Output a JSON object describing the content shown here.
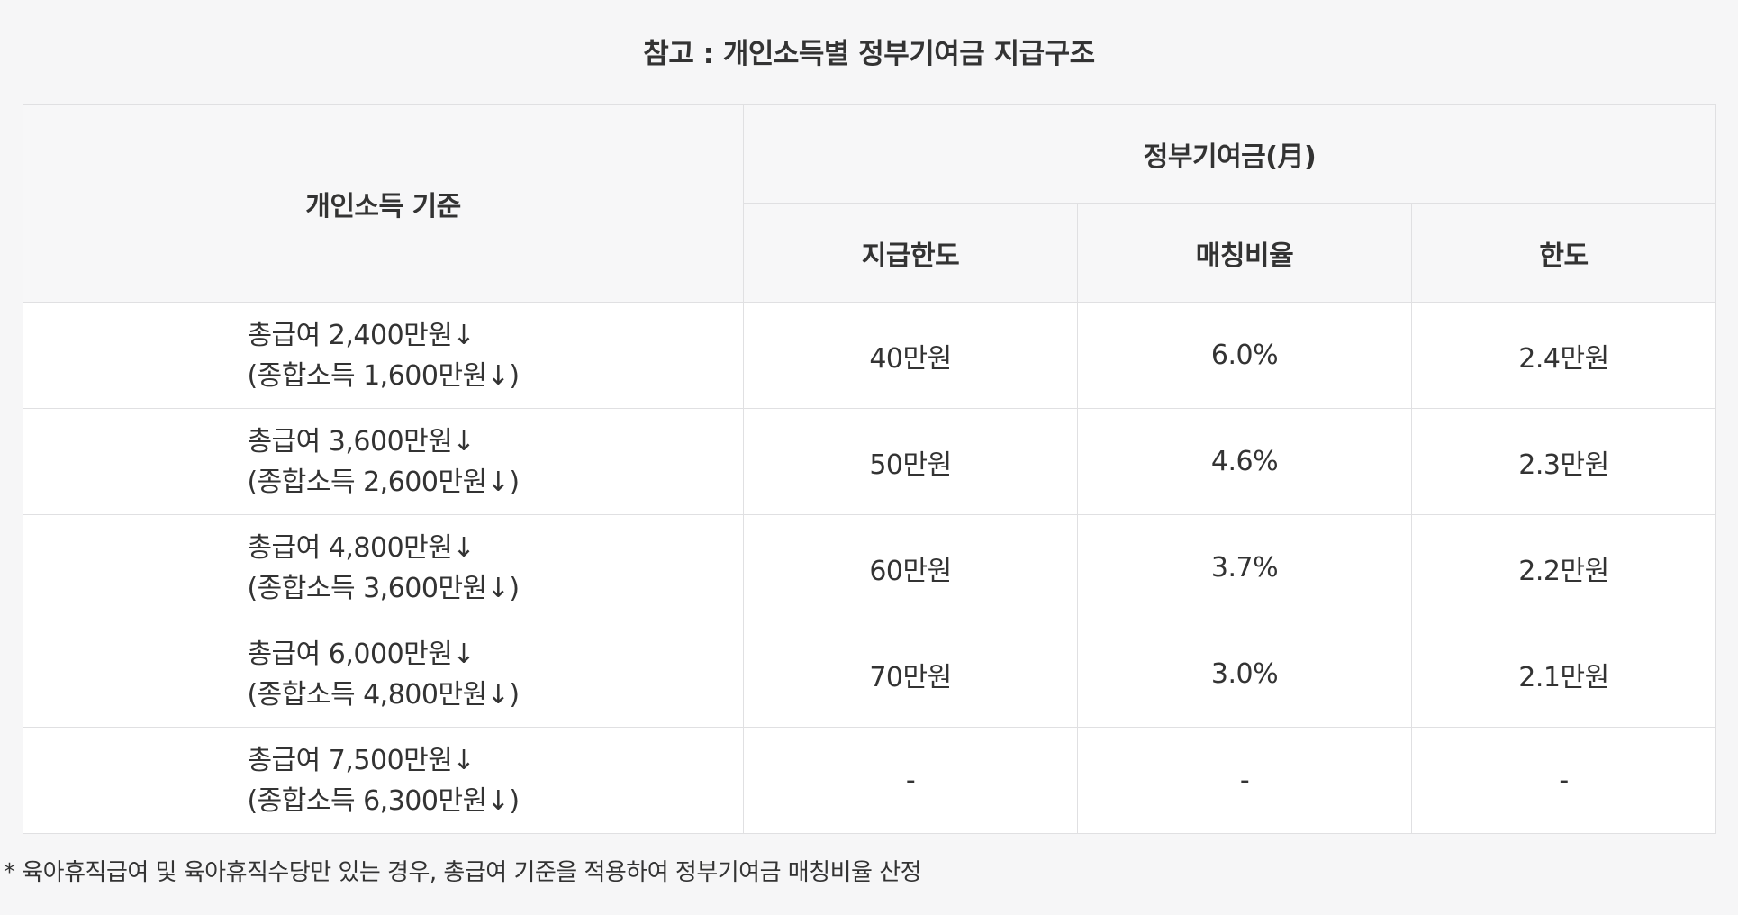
{
  "title": "참고 : 개인소득별 정부기여금 지급구조",
  "table": {
    "header": {
      "income_basis": "개인소득 기준",
      "contribution_group": "정부기여금(月)",
      "columns": [
        "지급한도",
        "매칭비율",
        "한도"
      ]
    },
    "rows": [
      {
        "line1": "총급여 2,400만원↓",
        "line2": "(종합소득 1,600만원↓)",
        "limit": "40만원",
        "ratio": "6.0%",
        "cap": "2.4만원"
      },
      {
        "line1": "총급여 3,600만원↓",
        "line2": "(종합소득 2,600만원↓)",
        "limit": "50만원",
        "ratio": "4.6%",
        "cap": "2.3만원"
      },
      {
        "line1": "총급여 4,800만원↓",
        "line2": "(종합소득 3,600만원↓)",
        "limit": "60만원",
        "ratio": "3.7%",
        "cap": "2.2만원"
      },
      {
        "line1": "총급여 6,000만원↓",
        "line2": "(종합소득 4,800만원↓)",
        "limit": "70만원",
        "ratio": "3.0%",
        "cap": "2.1만원"
      },
      {
        "line1": "총급여 7,500만원↓",
        "line2": "(종합소득 6,300만원↓)",
        "limit": "-",
        "ratio": "-",
        "cap": "-"
      }
    ]
  },
  "footnote": "* 육아휴직급여 및 육아휴직수당만 있는 경우, 총급여 기준을 적용하여 정부기여금 매칭비율 산정",
  "colors": {
    "background": "#f6f6f7",
    "header_bg": "#f7f7f8",
    "border": "#e0e0e2",
    "text": "#333333"
  }
}
